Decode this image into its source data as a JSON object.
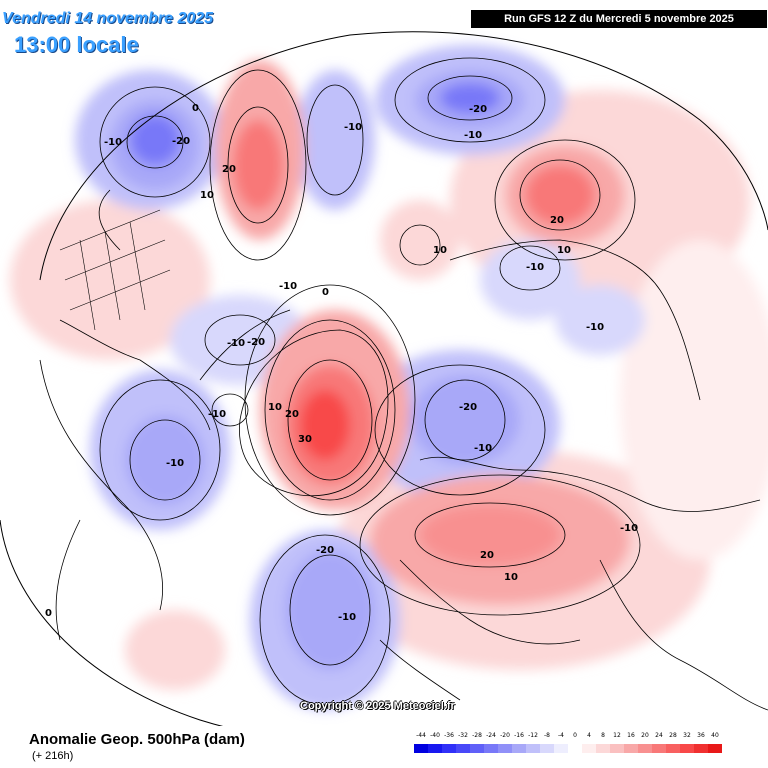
{
  "header": {
    "valid_date": "Vendredi 14 novembre 2025",
    "local_time": "13:00 locale",
    "run_info": "Run GFS 12 Z du Mercredi 5 novembre 2025"
  },
  "footer": {
    "title": "Anomalie Geop. 500hPa (dam)",
    "forecast_hour": "(+ 216h)",
    "copyright": "Copyright © 2025 Meteociel.fr"
  },
  "legend": {
    "ticks": [
      "-44",
      "-40",
      "-36",
      "-32",
      "-28",
      "-24",
      "-20",
      "-16",
      "-12",
      "-8",
      "-4",
      "0",
      "4",
      "8",
      "12",
      "16",
      "20",
      "24",
      "28",
      "32",
      "36",
      "40"
    ],
    "colors": [
      "#0000e0",
      "#1818f0",
      "#3030f8",
      "#4848f8",
      "#6060f8",
      "#7878f8",
      "#9090f8",
      "#a8a8f8",
      "#c0c0fa",
      "#d8d8fc",
      "#eeeefe",
      "#ffffff",
      "#feeeee",
      "#fcd8d8",
      "#fac0c0",
      "#f8a8a8",
      "#f89090",
      "#f87878",
      "#f86060",
      "#f84848",
      "#f03030",
      "#e81818"
    ]
  },
  "contour_labels": [
    {
      "text": "-10",
      "name": "label-neg10-pacific-nw"
    },
    {
      "text": "-20",
      "name": "label-neg20-pacific-nw"
    },
    {
      "text": "0",
      "name": "label-0-pacific-nw"
    },
    {
      "text": "10",
      "name": "label-10-bering"
    },
    {
      "text": "20",
      "name": "label-20-bering"
    },
    {
      "text": "-10",
      "name": "label-neg10-siberia-north"
    },
    {
      "text": "-20",
      "name": "label-neg20-siberia-north"
    },
    {
      "text": "-10",
      "name": "label-neg10-siberia-north-b"
    },
    {
      "text": "20",
      "name": "label-20-east-europe-high"
    },
    {
      "text": "10",
      "name": "label-10-east-europe-high"
    },
    {
      "text": "10",
      "name": "label-10-arctic"
    },
    {
      "text": "-10",
      "name": "label-neg10-kara"
    },
    {
      "text": "-10",
      "name": "label-neg10-east"
    },
    {
      "text": "-10",
      "name": "label-neg10-canada"
    },
    {
      "text": "0",
      "name": "label-0-canada"
    },
    {
      "text": "-10",
      "name": "label-neg10-hudson"
    },
    {
      "text": "-20",
      "name": "label-neg20-hudson"
    },
    {
      "text": "-10",
      "name": "label-neg10-labrador"
    },
    {
      "text": "10",
      "name": "label-10-greenland"
    },
    {
      "text": "20",
      "name": "label-20-greenland"
    },
    {
      "text": "30",
      "name": "label-30-greenland"
    },
    {
      "text": "-10",
      "name": "label-neg10-us-east"
    },
    {
      "text": "-20",
      "name": "label-neg20-barents"
    },
    {
      "text": "-10",
      "name": "label-neg10-barents"
    },
    {
      "text": "20",
      "name": "label-20-central-asia"
    },
    {
      "text": "10",
      "name": "label-10-central-asia"
    },
    {
      "text": "-10",
      "name": "label-neg10-asia-east"
    },
    {
      "text": "-20",
      "name": "label-neg20-atlantic"
    },
    {
      "text": "-10",
      "name": "label-neg10-atlantic"
    },
    {
      "text": "0",
      "name": "label-0-pacific-south"
    }
  ]
}
